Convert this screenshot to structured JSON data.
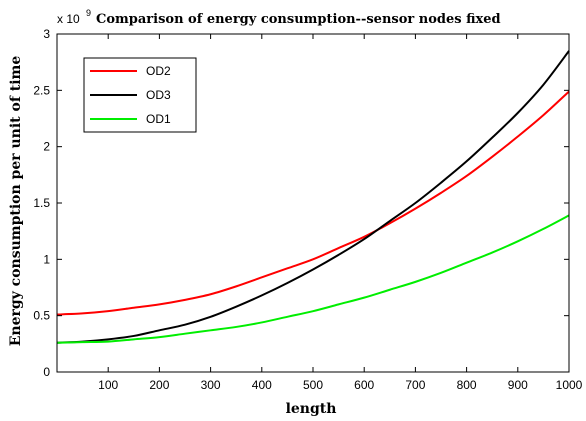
{
  "chart_data": {
    "type": "line",
    "title": "Comparison of energy consumption--sensor nodes fixed",
    "xlabel": "length",
    "ylabel": "Energy consumption per unit of time",
    "y_multiplier_base": "x 10",
    "y_multiplier_exponent": "9",
    "xlim": [
      0,
      1000
    ],
    "ylim": [
      0,
      3
    ],
    "x_ticks": [
      "100",
      "200",
      "300",
      "400",
      "500",
      "600",
      "700",
      "800",
      "900",
      "1000"
    ],
    "y_ticks": [
      "0",
      "0.5",
      "1",
      "1.5",
      "2",
      "2.5",
      "3"
    ],
    "legend_position": "top-left",
    "grid": false,
    "x": [
      0,
      50,
      100,
      150,
      200,
      250,
      300,
      350,
      400,
      450,
      500,
      550,
      600,
      650,
      700,
      750,
      800,
      850,
      900,
      950,
      1000
    ],
    "series": [
      {
        "name": "OD2",
        "color": "#ff0000",
        "values": [
          0.51,
          0.52,
          0.54,
          0.57,
          0.6,
          0.64,
          0.69,
          0.76,
          0.84,
          0.92,
          1.0,
          1.1,
          1.2,
          1.32,
          1.45,
          1.59,
          1.74,
          1.91,
          2.09,
          2.28,
          2.49
        ]
      },
      {
        "name": "OD3",
        "color": "#000000",
        "values": [
          0.26,
          0.27,
          0.29,
          0.32,
          0.37,
          0.42,
          0.49,
          0.58,
          0.68,
          0.79,
          0.91,
          1.04,
          1.18,
          1.34,
          1.5,
          1.68,
          1.87,
          2.08,
          2.3,
          2.55,
          2.85
        ]
      },
      {
        "name": "OD1",
        "color": "#00ee00",
        "values": [
          0.26,
          0.265,
          0.27,
          0.29,
          0.31,
          0.34,
          0.37,
          0.4,
          0.44,
          0.49,
          0.54,
          0.6,
          0.66,
          0.73,
          0.8,
          0.88,
          0.97,
          1.06,
          1.16,
          1.27,
          1.39
        ]
      }
    ]
  }
}
